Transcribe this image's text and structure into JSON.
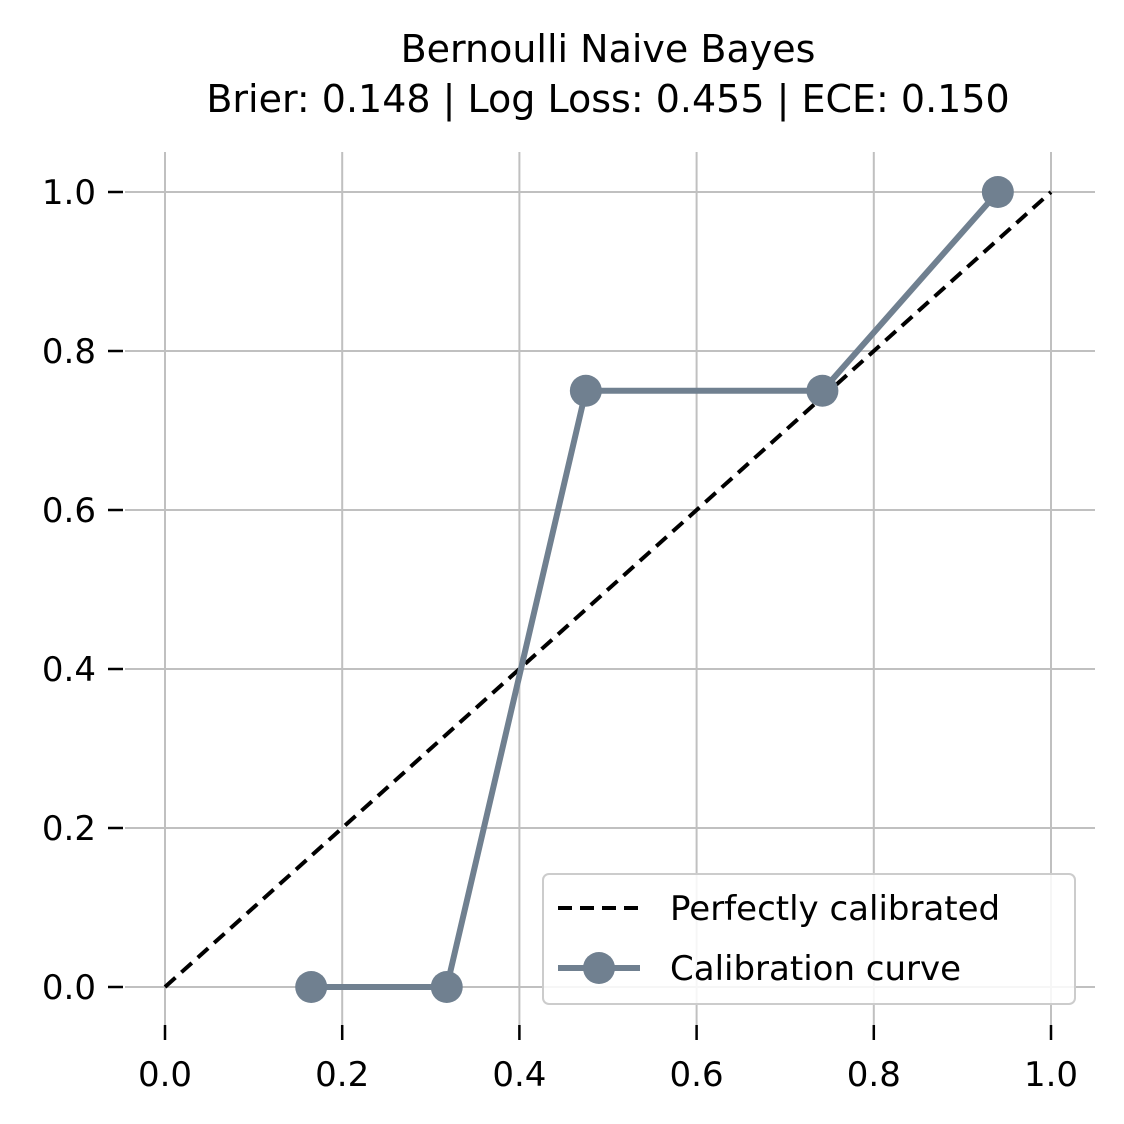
{
  "chart_data": {
    "type": "line",
    "title": "Bernoulli Naive Bayes",
    "subtitle": "Brier: 0.148 | Log Loss: 0.455 | ECE: 0.150",
    "xlabel": "",
    "ylabel": "",
    "xlim": [
      0.0,
      1.0
    ],
    "ylim": [
      0.0,
      1.0
    ],
    "x_ticks": [
      "0.0",
      "0.2",
      "0.4",
      "0.6",
      "0.8",
      "1.0"
    ],
    "y_ticks": [
      "0.0",
      "0.2",
      "0.4",
      "0.6",
      "0.8",
      "1.0"
    ],
    "grid": true,
    "legend_position": "bottom-right",
    "series": [
      {
        "name": "Perfectly calibrated",
        "style": "dashed",
        "color": "#000000",
        "x": [
          0.0,
          1.0
        ],
        "y": [
          0.0,
          1.0
        ]
      },
      {
        "name": "Calibration curve",
        "style": "solid-marker",
        "color": "#708090",
        "x": [
          0.165,
          0.318,
          0.475,
          0.742,
          0.94
        ],
        "y": [
          0.0,
          0.0,
          0.75,
          0.75,
          1.0
        ]
      }
    ]
  }
}
